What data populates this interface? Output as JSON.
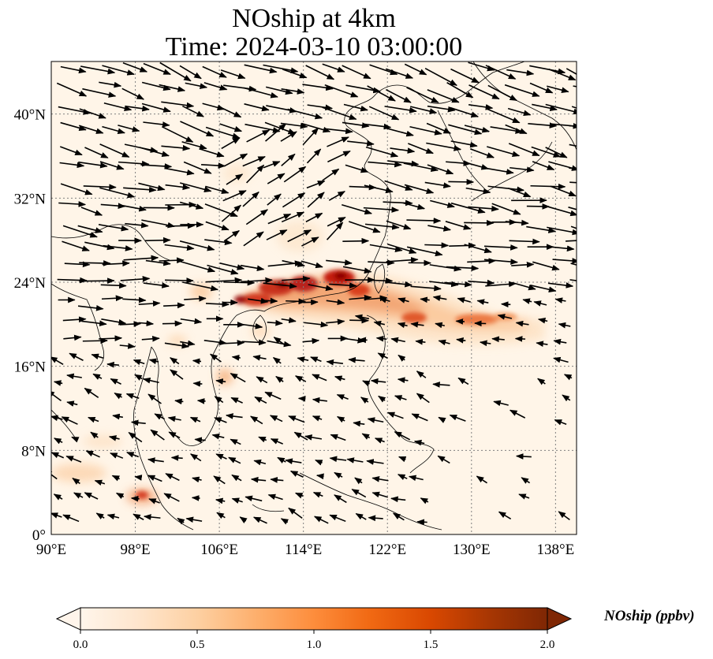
{
  "title": {
    "line1": "NOship at 4km",
    "line2": "Time: 2024-03-10 03:00:00"
  },
  "map": {
    "extent": {
      "lon": [
        90,
        140
      ],
      "lat": [
        0,
        45
      ]
    },
    "projection": "PlateCarree",
    "gridlines": "dotted",
    "lon_ticks": [
      "90°E",
      "98°E",
      "106°E",
      "114°E",
      "122°E",
      "130°E",
      "138°E"
    ],
    "lat_ticks": [
      "0°",
      "8°N",
      "16°N",
      "24°N",
      "32°N",
      "40°N"
    ],
    "background_color": "#fff5e8",
    "plume_colors": [
      "#fdd0a2",
      "#f4a464",
      "#e8643a",
      "#c41a10",
      "#8b0000"
    ],
    "wind_vectors": "black arrows"
  },
  "colorbar": {
    "label": "NOship (ppbv)",
    "ticks": [
      "0.0",
      "0.5",
      "1.0",
      "1.5",
      "2.0"
    ],
    "range": [
      0.0,
      2.0
    ],
    "extend": "both",
    "cmap": [
      "#fff5eb",
      "#fee6ce",
      "#fdd0a2",
      "#fdae6b",
      "#fd8d3c",
      "#f16913",
      "#d94801",
      "#a63603",
      "#7f2704"
    ]
  },
  "chart_data": {
    "type": "heatmap",
    "title": "NOship at 4km\nTime: 2024-03-10 03:00:00",
    "xlabel": "",
    "ylabel": "",
    "xlim": [
      90,
      140
    ],
    "ylim": [
      0,
      45
    ],
    "x_ticks": [
      "90°E",
      "98°E",
      "106°E",
      "114°E",
      "122°E",
      "130°E",
      "138°E"
    ],
    "y_ticks": [
      "0°",
      "8°N",
      "16°N",
      "24°N",
      "32°N",
      "40°N"
    ],
    "colorbar_range": [
      0.0,
      2.0
    ],
    "colorbar_label": "NOship (ppbv)",
    "hotspots": [
      {
        "lon": 110,
        "lat": 22,
        "value": 1.8
      },
      {
        "lon": 113,
        "lat": 23.5,
        "value": 1.9
      },
      {
        "lon": 117,
        "lat": 24,
        "value": 1.8
      },
      {
        "lon": 120,
        "lat": 23,
        "value": 1.6
      },
      {
        "lon": 126,
        "lat": 21,
        "value": 1.2
      },
      {
        "lon": 131,
        "lat": 20.5,
        "value": 1.0
      },
      {
        "lon": 98,
        "lat": 4,
        "value": 1.0
      }
    ]
  }
}
